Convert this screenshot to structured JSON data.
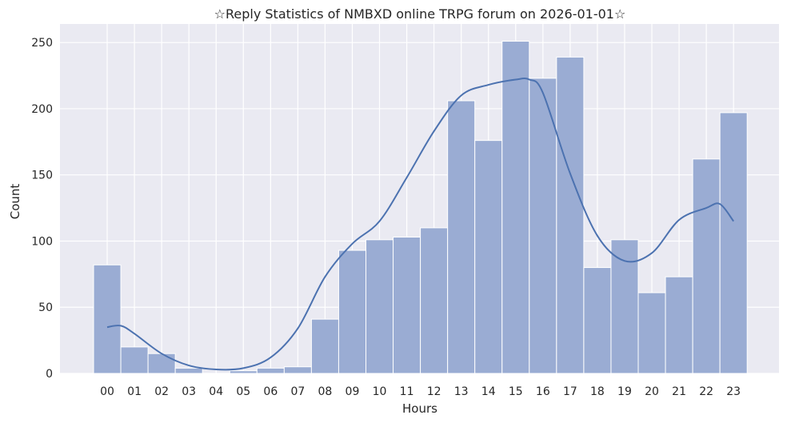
{
  "chart_data": {
    "type": "bar",
    "title": "☆Reply Statistics of NMBXD online TRPG forum on 2026-01-01☆",
    "xlabel": "Hours",
    "ylabel": "Count",
    "categories": [
      "00",
      "01",
      "02",
      "03",
      "04",
      "05",
      "06",
      "07",
      "08",
      "09",
      "10",
      "11",
      "12",
      "13",
      "14",
      "15",
      "16",
      "17",
      "18",
      "19",
      "20",
      "21",
      "22",
      "23"
    ],
    "values": [
      82,
      20,
      15,
      4,
      0,
      2,
      4,
      5,
      41,
      93,
      101,
      103,
      110,
      206,
      176,
      251,
      223,
      239,
      80,
      101,
      61,
      73,
      162,
      197
    ],
    "yticks": [
      0,
      50,
      100,
      150,
      200,
      250
    ],
    "ylim": [
      0,
      264
    ],
    "grid": true,
    "kde": {
      "x": [
        0,
        0.5,
        1,
        2,
        3,
        4,
        5,
        6,
        7,
        8,
        9,
        10,
        11,
        12,
        13,
        14,
        15,
        15.5,
        16,
        17,
        18,
        19,
        20,
        21,
        22,
        22.5,
        23
      ],
      "y": [
        35,
        36,
        30,
        15,
        6,
        3,
        4,
        12,
        34,
        73,
        98,
        115,
        148,
        183,
        210,
        218,
        222,
        222,
        212,
        151,
        104,
        85,
        91,
        116,
        125,
        128,
        115
      ]
    },
    "colors": {
      "bar_fill": "#9aacd3",
      "bar_stroke": "#ffffff",
      "kde_line": "#4c72b0",
      "plot_bg": "#eaeaf2",
      "grid": "#ffffff"
    }
  }
}
